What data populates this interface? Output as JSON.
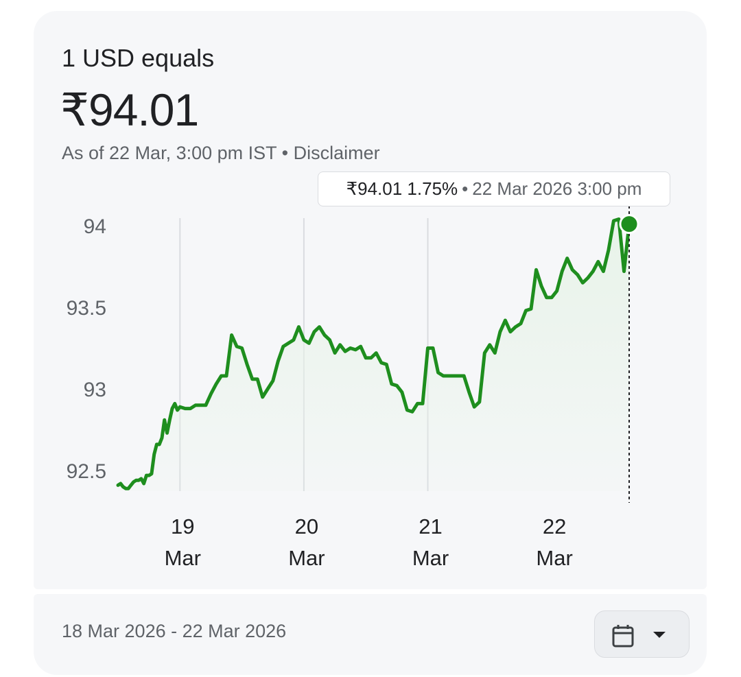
{
  "header": {
    "title": "1 USD equals",
    "price": "₹94.01",
    "as_of": "As of 22 Mar, 3:00 pm IST",
    "separator": "•",
    "disclaimer": "Disclaimer"
  },
  "tooltip": {
    "price": "₹94.01",
    "change": "1.75%",
    "separator": "•",
    "datetime": "22 Mar 2026 3:00 pm"
  },
  "footer": {
    "date_range": "18 Mar 2026 - 22 Mar 2026",
    "calendar_icon": "calendar-icon",
    "dropdown_icon": "caret-down-icon"
  },
  "colors": {
    "line": "#1e8e1e",
    "area": "#e8f3e9",
    "grid": "#dadce0",
    "axis_text": "#5f6368"
  },
  "chart_data": {
    "type": "line",
    "ylim": [
      92.4,
      94.0
    ],
    "y_ticks": [
      {
        "value": 94,
        "label": "94"
      },
      {
        "value": 93.5,
        "label": "93.5"
      },
      {
        "value": 93,
        "label": "93"
      },
      {
        "value": 92.5,
        "label": "92.5"
      }
    ],
    "x_range": [
      "2026-03-18T12:00",
      "2026-03-22T15:00"
    ],
    "x_ticks": [
      {
        "value": "2026-03-19T00:00",
        "day": "19",
        "month": "Mar"
      },
      {
        "value": "2026-03-20T00:00",
        "day": "20",
        "month": "Mar"
      },
      {
        "value": "2026-03-21T00:00",
        "day": "21",
        "month": "Mar"
      },
      {
        "value": "2026-03-22T00:00",
        "day": "22",
        "month": "Mar"
      }
    ],
    "gridlines": true,
    "highlight": {
      "x": "2026-03-22T15:00",
      "y": 94.01
    },
    "series": [
      {
        "values": [
          [
            "2026-03-18T12:00",
            92.41
          ],
          [
            "2026-03-18T12:30",
            92.42
          ],
          [
            "2026-03-18T13:00",
            92.4
          ],
          [
            "2026-03-18T13:30",
            92.39
          ],
          [
            "2026-03-18T14:00",
            92.39
          ],
          [
            "2026-03-18T14:30",
            92.41
          ],
          [
            "2026-03-18T15:00",
            92.43
          ],
          [
            "2026-03-18T15:30",
            92.44
          ],
          [
            "2026-03-18T16:00",
            92.44
          ],
          [
            "2026-03-18T16:30",
            92.45
          ],
          [
            "2026-03-18T17:00",
            92.42
          ],
          [
            "2026-03-18T17:30",
            92.47
          ],
          [
            "2026-03-18T18:00",
            92.47
          ],
          [
            "2026-03-18T18:30",
            92.48
          ],
          [
            "2026-03-18T19:00",
            92.6
          ],
          [
            "2026-03-18T19:30",
            92.66
          ],
          [
            "2026-03-18T20:00",
            92.66
          ],
          [
            "2026-03-18T20:30",
            92.7
          ],
          [
            "2026-03-18T21:00",
            92.81
          ],
          [
            "2026-03-18T21:30",
            92.73
          ],
          [
            "2026-03-18T22:00",
            92.81
          ],
          [
            "2026-03-18T22:30",
            92.88
          ],
          [
            "2026-03-18T23:00",
            92.91
          ],
          [
            "2026-03-18T23:30",
            92.87
          ],
          [
            "2026-03-19T00:00",
            92.89
          ],
          [
            "2026-03-19T01:00",
            92.88
          ],
          [
            "2026-03-19T02:00",
            92.88
          ],
          [
            "2026-03-19T03:00",
            92.9
          ],
          [
            "2026-03-19T04:00",
            92.9
          ],
          [
            "2026-03-19T05:00",
            92.9
          ],
          [
            "2026-03-19T06:00",
            92.97
          ],
          [
            "2026-03-19T07:00",
            93.03
          ],
          [
            "2026-03-19T08:00",
            93.08
          ],
          [
            "2026-03-19T09:00",
            93.08
          ],
          [
            "2026-03-19T10:00",
            93.33
          ],
          [
            "2026-03-19T11:00",
            93.26
          ],
          [
            "2026-03-19T12:00",
            93.25
          ],
          [
            "2026-03-19T13:00",
            93.15
          ],
          [
            "2026-03-19T14:00",
            93.06
          ],
          [
            "2026-03-19T15:00",
            93.06
          ],
          [
            "2026-03-19T16:00",
            92.95
          ],
          [
            "2026-03-19T17:00",
            93.0
          ],
          [
            "2026-03-19T18:00",
            93.05
          ],
          [
            "2026-03-19T19:00",
            93.17
          ],
          [
            "2026-03-19T20:00",
            93.26
          ],
          [
            "2026-03-19T21:00",
            93.28
          ],
          [
            "2026-03-19T22:00",
            93.3
          ],
          [
            "2026-03-19T23:00",
            93.38
          ],
          [
            "2026-03-20T00:00",
            93.3
          ],
          [
            "2026-03-20T01:00",
            93.28
          ],
          [
            "2026-03-20T02:00",
            93.35
          ],
          [
            "2026-03-20T03:00",
            93.38
          ],
          [
            "2026-03-20T04:00",
            93.33
          ],
          [
            "2026-03-20T05:00",
            93.3
          ],
          [
            "2026-03-20T06:00",
            93.22
          ],
          [
            "2026-03-20T07:00",
            93.27
          ],
          [
            "2026-03-20T08:00",
            93.23
          ],
          [
            "2026-03-20T09:00",
            93.25
          ],
          [
            "2026-03-20T10:00",
            93.24
          ],
          [
            "2026-03-20T11:00",
            93.26
          ],
          [
            "2026-03-20T12:00",
            93.19
          ],
          [
            "2026-03-20T13:00",
            93.19
          ],
          [
            "2026-03-20T14:00",
            93.22
          ],
          [
            "2026-03-20T15:00",
            93.16
          ],
          [
            "2026-03-20T16:00",
            93.15
          ],
          [
            "2026-03-20T17:00",
            93.03
          ],
          [
            "2026-03-20T18:00",
            93.02
          ],
          [
            "2026-03-20T19:00",
            92.98
          ],
          [
            "2026-03-20T20:00",
            92.87
          ],
          [
            "2026-03-20T21:00",
            92.86
          ],
          [
            "2026-03-20T22:00",
            92.91
          ],
          [
            "2026-03-20T23:00",
            92.91
          ],
          [
            "2026-03-21T00:00",
            93.25
          ],
          [
            "2026-03-21T01:00",
            93.25
          ],
          [
            "2026-03-21T02:00",
            93.1
          ],
          [
            "2026-03-21T03:00",
            93.08
          ],
          [
            "2026-03-21T04:00",
            93.08
          ],
          [
            "2026-03-21T05:00",
            93.08
          ],
          [
            "2026-03-21T06:00",
            93.08
          ],
          [
            "2026-03-21T07:00",
            93.08
          ],
          [
            "2026-03-21T08:00",
            92.98
          ],
          [
            "2026-03-21T09:00",
            92.89
          ],
          [
            "2026-03-21T10:00",
            92.92
          ],
          [
            "2026-03-21T11:00",
            93.22
          ],
          [
            "2026-03-21T12:00",
            93.27
          ],
          [
            "2026-03-21T13:00",
            93.22
          ],
          [
            "2026-03-21T14:00",
            93.35
          ],
          [
            "2026-03-21T15:00",
            93.42
          ],
          [
            "2026-03-21T16:00",
            93.35
          ],
          [
            "2026-03-21T17:00",
            93.38
          ],
          [
            "2026-03-21T18:00",
            93.4
          ],
          [
            "2026-03-21T19:00",
            93.48
          ],
          [
            "2026-03-21T20:00",
            93.49
          ],
          [
            "2026-03-21T21:00",
            93.73
          ],
          [
            "2026-03-21T22:00",
            93.63
          ],
          [
            "2026-03-21T23:00",
            93.56
          ],
          [
            "2026-03-22T00:00",
            93.56
          ],
          [
            "2026-03-22T01:00",
            93.6
          ],
          [
            "2026-03-22T02:00",
            93.72
          ],
          [
            "2026-03-22T03:00",
            93.8
          ],
          [
            "2026-03-22T04:00",
            93.73
          ],
          [
            "2026-03-22T05:00",
            93.7
          ],
          [
            "2026-03-22T06:00",
            93.65
          ],
          [
            "2026-03-22T07:00",
            93.68
          ],
          [
            "2026-03-22T08:00",
            93.72
          ],
          [
            "2026-03-22T09:00",
            93.78
          ],
          [
            "2026-03-22T10:00",
            93.72
          ],
          [
            "2026-03-22T11:00",
            93.85
          ],
          [
            "2026-03-22T12:00",
            94.03
          ],
          [
            "2026-03-22T13:00",
            94.04
          ],
          [
            "2026-03-22T14:00",
            93.72
          ],
          [
            "2026-03-22T15:00",
            94.01
          ]
        ]
      }
    ]
  }
}
